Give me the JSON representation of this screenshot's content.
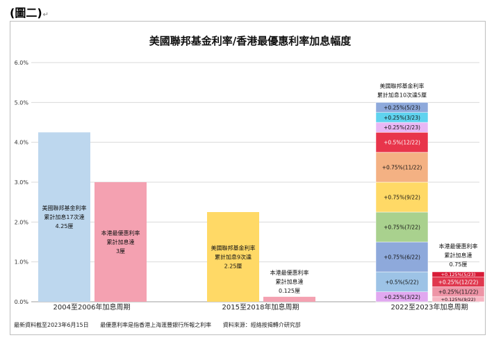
{
  "figure_label": "(圖二)",
  "paragraph_mark": "↵",
  "footnotes": {
    "updated": "最新資料截至2023年6月15日",
    "definition": "最優惠利率是指香港上海滙豐銀行所報之利率",
    "source": "資料來源：經絡按揭轉介研究部"
  },
  "chart_data": {
    "type": "bar",
    "title": "美國聯邦基金利率/香港最優惠利率加息幅度",
    "xlabel": "",
    "ylabel": "",
    "ylim": [
      0,
      6
    ],
    "yticks": [
      "0.0%",
      "1.0%",
      "2.0%",
      "3.0%",
      "4.0%",
      "5.0%",
      "6.0%"
    ],
    "grid": true,
    "categories": [
      "2004至2006年加息周期",
      "2015至2018年加息周期",
      "2022至2023年加息周期"
    ],
    "colors": {
      "us_2004": "#bdd7ee",
      "hk_2004": "#f4a1b1",
      "us_2015": "#ffd966",
      "hk_2015": "#f4a1b1"
    },
    "bars": [
      {
        "group": 0,
        "slot": 0,
        "value": 4.25,
        "color_key": "us_2004",
        "label_pos": "inside",
        "label": [
          "美國聯邦基金利率",
          "累計加息17次達",
          "4.25厘"
        ]
      },
      {
        "group": 0,
        "slot": 1,
        "value": 3.0,
        "color_key": "hk_2004",
        "label_pos": "inside",
        "label": [
          "本港最優惠利率",
          "累計加息達",
          "3厘"
        ]
      },
      {
        "group": 1,
        "slot": 0,
        "value": 2.25,
        "color_key": "us_2015",
        "label_pos": "inside",
        "label": [
          "美國聯邦基金利率",
          "累計加息9次達",
          "2.25厘"
        ]
      },
      {
        "group": 1,
        "slot": 1,
        "value": 0.125,
        "color_key": "hk_2015",
        "label_pos": "above",
        "label": [
          "本港最優惠利率",
          "累計加息達",
          "0.125厘"
        ]
      }
    ],
    "stacked": [
      {
        "group": 2,
        "slot": 0,
        "label_pos": "above",
        "label": [
          "美國聯邦基金利率",
          "累計加息10次達5厘"
        ],
        "segments": [
          {
            "value": 0.25,
            "label": "+0.25%(3/22)",
            "color": "#e1a8f0"
          },
          {
            "value": 0.5,
            "label": "+0.5%(5/22)",
            "color": "#9dc3e6"
          },
          {
            "value": 0.75,
            "label": "+0.75%(6/22)",
            "color": "#8ea9db"
          },
          {
            "value": 0.75,
            "label": "+0.75%(7/22)",
            "color": "#a9d18e"
          },
          {
            "value": 0.75,
            "label": "+0.75%(9/22)",
            "color": "#ffd966"
          },
          {
            "value": 0.75,
            "label": "+0.75%(11/22)",
            "color": "#f4b183"
          },
          {
            "value": 0.5,
            "label": "+0.5%(12/22)",
            "color": "#e8354b"
          },
          {
            "value": 0.25,
            "label": "+0.25%(2/23)",
            "color": "#e8b7f5"
          },
          {
            "value": 0.25,
            "label": "+0.25%(3/23)",
            "color": "#5fd3ef"
          },
          {
            "value": 0.25,
            "label": "+0.25%(5/23)",
            "color": "#8ea9db"
          }
        ]
      },
      {
        "group": 2,
        "slot": 1,
        "label_pos": "above",
        "label": [
          "本港最優惠利率",
          "累計加息達",
          "0.75厘"
        ],
        "segments": [
          {
            "value": 0.125,
            "label": "+0.125%(9/22)",
            "color": "#f7b5c2"
          },
          {
            "value": 0.25,
            "label": "+0.25%(11/22)",
            "color": "#ee94a6"
          },
          {
            "value": 0.25,
            "label": "+0.25%(12/22)",
            "color": "#e0384f"
          },
          {
            "value": 0.125,
            "label": "+0.125%(5/23)",
            "color": "#d81b37"
          }
        ]
      }
    ]
  }
}
